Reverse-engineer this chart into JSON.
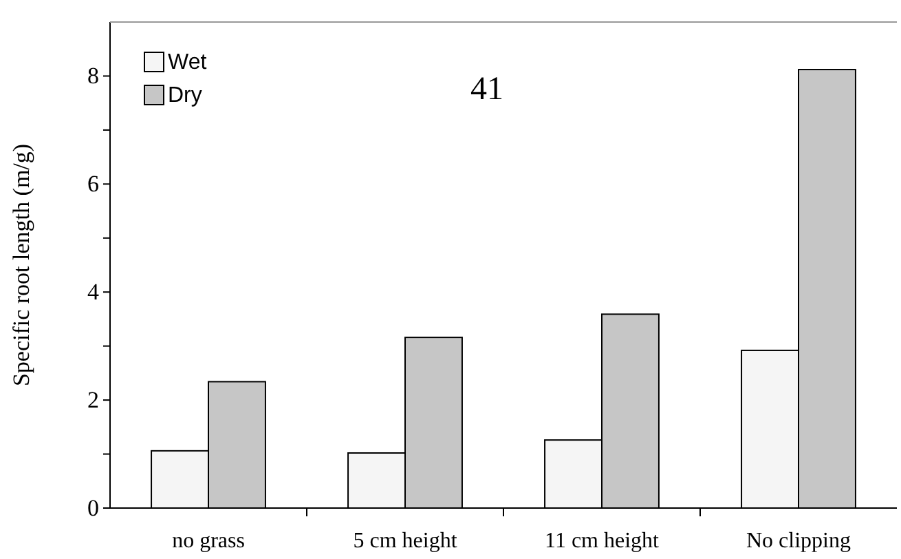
{
  "chart_data": {
    "type": "bar",
    "ylabel": "Specific root length (m/g)",
    "categories": [
      "no grass",
      "5 cm height",
      "11 cm height",
      "No clipping"
    ],
    "series": [
      {
        "name": "Wet",
        "color": "#f5f5f5",
        "values": [
          1.06,
          1.02,
          1.26,
          2.92
        ]
      },
      {
        "name": "Dry",
        "color": "#c6c6c6",
        "values": [
          2.34,
          3.16,
          3.59,
          8.12
        ]
      }
    ],
    "ylim": [
      0,
      9
    ],
    "yticks": [
      0,
      {
        "value": 1,
        "label": null
      },
      2,
      {
        "value": 3,
        "label": null
      },
      4,
      {
        "value": 5,
        "label": null
      },
      6,
      {
        "value": 7,
        "label": null
      },
      8
    ],
    "annotations": [
      "41"
    ],
    "legend": "top left",
    "grid": false
  }
}
